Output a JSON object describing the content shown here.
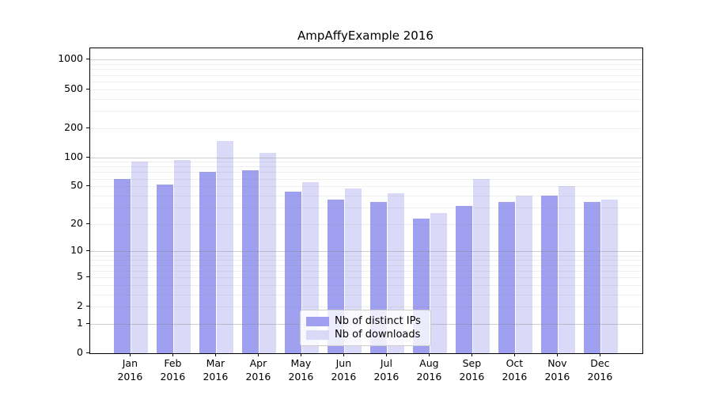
{
  "title": "AmpAffyExample 2016",
  "chart_data": {
    "type": "bar",
    "title": "AmpAffyExample 2016",
    "categories": [
      "Jan",
      "Feb",
      "Mar",
      "Apr",
      "May",
      "Jun",
      "Jul",
      "Aug",
      "Sep",
      "Oct",
      "Nov",
      "Dec"
    ],
    "category_year": "2016",
    "series": [
      {
        "name": "Nb of distinct IPs",
        "color": "#a0a0f0",
        "values": [
          60,
          52,
          70,
          73,
          44,
          36,
          34,
          23,
          31,
          34,
          40,
          34
        ]
      },
      {
        "name": "Nb of downloads",
        "color": "#dadaf8",
        "values": [
          91,
          93,
          148,
          110,
          55,
          47,
          42,
          26,
          60,
          40,
          50,
          36
        ]
      }
    ],
    "yticks": [
      1000,
      500,
      200,
      100,
      50,
      20,
      10,
      5,
      2,
      1,
      0
    ],
    "yscale": "log10(1+y)",
    "ylim": [
      0,
      1300
    ],
    "xlabel": "",
    "ylabel": "",
    "grid": "horizontal, minor + major log gridlines drawn over bars",
    "legend_position": "inside lower-center"
  },
  "colors": {
    "bar_dark": "#a0a0f0",
    "bar_light": "#dadaf8",
    "gridline_major": "#c6c6c6",
    "gridline_minor": "#ececec",
    "spine": "#000000",
    "legend_border": "#cccccc"
  }
}
